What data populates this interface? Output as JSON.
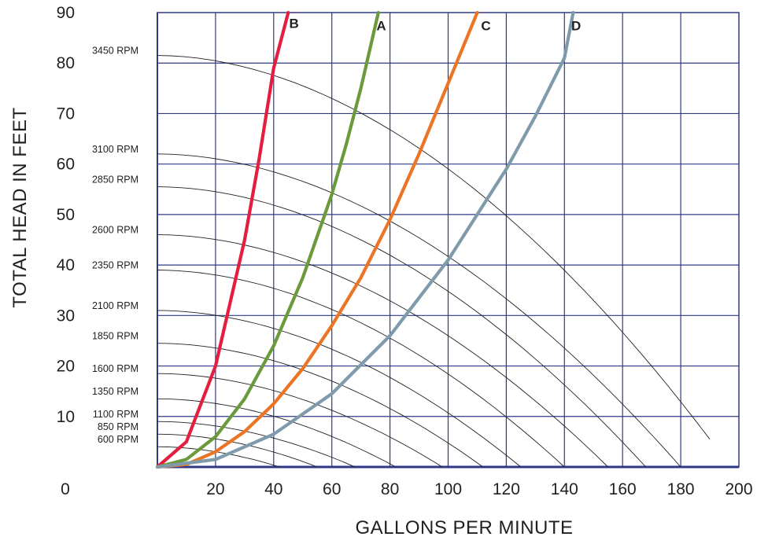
{
  "chart_data": {
    "type": "line",
    "xlabel": "GALLONS PER MINUTE",
    "ylabel": "TOTAL HEAD IN FEET",
    "xlim": [
      0,
      200
    ],
    "ylim": [
      0,
      90
    ],
    "x_ticks": [
      0,
      20,
      40,
      60,
      80,
      100,
      120,
      140,
      160,
      180,
      200
    ],
    "y_ticks": [
      0,
      10,
      20,
      30,
      40,
      50,
      60,
      70,
      80,
      90
    ],
    "grid": true,
    "pump_curves": [
      {
        "label": "3450 RPM",
        "shutoff_head": 81.5,
        "max_flow": 190,
        "end_head": 5.5
      },
      {
        "label": "3100 RPM",
        "shutoff_head": 62.0,
        "max_flow": 180,
        "end_head": 0
      },
      {
        "label": "2850 RPM",
        "shutoff_head": 55.5,
        "max_flow": 168,
        "end_head": 0
      },
      {
        "label": "2600 RPM",
        "shutoff_head": 46.0,
        "max_flow": 155,
        "end_head": 0
      },
      {
        "label": "2350 RPM",
        "shutoff_head": 39.0,
        "max_flow": 140,
        "end_head": 0
      },
      {
        "label": "2100 RPM",
        "shutoff_head": 31.0,
        "max_flow": 125,
        "end_head": 0
      },
      {
        "label": "1850 RPM",
        "shutoff_head": 24.5,
        "max_flow": 112,
        "end_head": 0
      },
      {
        "label": "1600 RPM",
        "shutoff_head": 18.5,
        "max_flow": 98,
        "end_head": 0
      },
      {
        "label": "1350 RPM",
        "shutoff_head": 13.5,
        "max_flow": 82,
        "end_head": 0
      },
      {
        "label": "1100 RPM",
        "shutoff_head": 9.0,
        "max_flow": 68,
        "end_head": 0
      },
      {
        "label": "850 RPM",
        "shutoff_head": 6.5,
        "max_flow": 55,
        "end_head": 0
      },
      {
        "label": "600 RPM",
        "shutoff_head": 4.0,
        "max_flow": 42,
        "end_head": 0
      }
    ],
    "rpm_label_heads": [
      81.5,
      62.0,
      56.0,
      46.0,
      39.0,
      31.0,
      25.0,
      18.5,
      14.0,
      9.5,
      7.0,
      4.5
    ],
    "system_curves": [
      {
        "name": "B",
        "color": "#e41e3f",
        "x": [
          0,
          10,
          20,
          30,
          35,
          40,
          45
        ],
        "y": [
          0,
          5,
          20,
          45,
          61,
          79,
          90
        ]
      },
      {
        "name": "A",
        "color": "#6a9a3c",
        "x": [
          0,
          10,
          20,
          30,
          40,
          50,
          60,
          65,
          70,
          76
        ],
        "y": [
          0,
          1.5,
          6,
          13.5,
          24,
          37.5,
          54,
          64,
          75,
          90
        ]
      },
      {
        "name": "C",
        "color": "#ec7425",
        "x": [
          0,
          10,
          20,
          30,
          40,
          50,
          60,
          70,
          80,
          90,
          100,
          110
        ],
        "y": [
          0,
          0.5,
          3,
          7,
          12.5,
          19.5,
          28,
          37.5,
          49,
          62,
          76,
          90
        ]
      },
      {
        "name": "D",
        "color": "#7f9bab",
        "x": [
          0,
          20,
          40,
          60,
          80,
          100,
          120,
          130,
          140,
          143
        ],
        "y": [
          0,
          1.5,
          6.5,
          14.5,
          26,
          41,
          59,
          69.5,
          81,
          90
        ]
      }
    ],
    "curve_labels": [
      {
        "text": "B",
        "x": 47,
        "y": 87
      },
      {
        "text": "A",
        "x": 77,
        "y": 86.5
      },
      {
        "text": "C",
        "x": 113,
        "y": 86.5
      },
      {
        "text": "D",
        "x": 144,
        "y": 86.5
      }
    ]
  }
}
